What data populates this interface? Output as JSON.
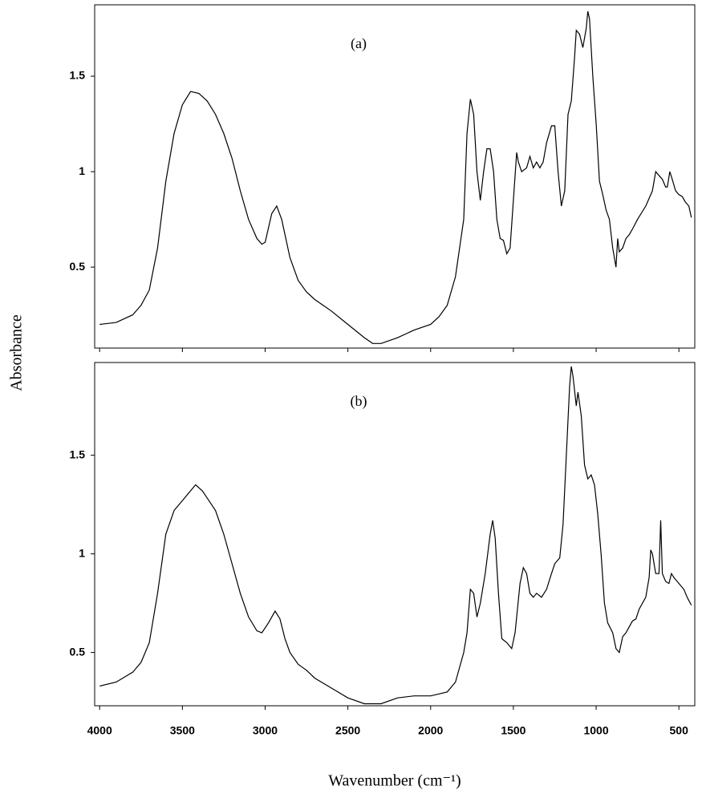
{
  "chart_data": [
    {
      "type": "line",
      "annotation": "(a)",
      "y_label": "Absorbance",
      "x": [
        4000,
        3900,
        3800,
        3750,
        3700,
        3650,
        3600,
        3550,
        3500,
        3450,
        3400,
        3350,
        3300,
        3250,
        3200,
        3150,
        3100,
        3050,
        3020,
        3000,
        2960,
        2930,
        2900,
        2850,
        2800,
        2750,
        2700,
        2600,
        2500,
        2400,
        2350,
        2300,
        2200,
        2100,
        2000,
        1950,
        1900,
        1850,
        1800,
        1780,
        1760,
        1740,
        1720,
        1700,
        1680,
        1660,
        1640,
        1620,
        1600,
        1580,
        1560,
        1540,
        1520,
        1500,
        1480,
        1470,
        1450,
        1420,
        1400,
        1380,
        1360,
        1340,
        1320,
        1300,
        1270,
        1250,
        1230,
        1210,
        1190,
        1170,
        1150,
        1130,
        1120,
        1100,
        1080,
        1060,
        1050,
        1040,
        1020,
        1000,
        980,
        960,
        940,
        920,
        900,
        880,
        870,
        860,
        840,
        820,
        800,
        780,
        750,
        700,
        660,
        640,
        620,
        600,
        580,
        570,
        555,
        540,
        520,
        500,
        480,
        460,
        440,
        425
      ],
      "values": [
        0.2,
        0.21,
        0.25,
        0.3,
        0.38,
        0.6,
        0.95,
        1.2,
        1.35,
        1.42,
        1.41,
        1.37,
        1.3,
        1.2,
        1.07,
        0.9,
        0.75,
        0.65,
        0.62,
        0.63,
        0.78,
        0.82,
        0.75,
        0.55,
        0.43,
        0.37,
        0.33,
        0.27,
        0.2,
        0.13,
        0.1,
        0.1,
        0.13,
        0.17,
        0.2,
        0.24,
        0.3,
        0.45,
        0.75,
        1.2,
        1.38,
        1.3,
        1.0,
        0.85,
        1.0,
        1.12,
        1.12,
        1.0,
        0.75,
        0.65,
        0.64,
        0.57,
        0.6,
        0.85,
        1.1,
        1.05,
        1.0,
        1.02,
        1.08,
        1.02,
        1.05,
        1.02,
        1.05,
        1.15,
        1.24,
        1.24,
        1.0,
        0.82,
        0.9,
        1.3,
        1.37,
        1.6,
        1.74,
        1.72,
        1.65,
        1.75,
        1.84,
        1.8,
        1.5,
        1.25,
        0.95,
        0.88,
        0.8,
        0.75,
        0.6,
        0.5,
        0.65,
        0.58,
        0.6,
        0.65,
        0.67,
        0.7,
        0.75,
        0.82,
        0.9,
        1.0,
        0.98,
        0.96,
        0.92,
        0.92,
        1.0,
        0.96,
        0.9,
        0.88,
        0.87,
        0.84,
        0.82,
        0.76
      ],
      "color": "#000000",
      "xlim": [
        4030,
        404
      ],
      "ylim": [
        0.076,
        1.874
      ],
      "yticks": [
        0.5,
        1.0,
        1.5
      ]
    },
    {
      "type": "line",
      "annotation": "(b)",
      "x_label": "Wavenumber (cm⁻¹)",
      "x": [
        4000,
        3900,
        3800,
        3750,
        3700,
        3650,
        3600,
        3550,
        3500,
        3450,
        3420,
        3380,
        3300,
        3250,
        3200,
        3150,
        3100,
        3050,
        3020,
        2980,
        2940,
        2910,
        2880,
        2850,
        2800,
        2750,
        2700,
        2600,
        2500,
        2400,
        2300,
        2200,
        2100,
        2000,
        1900,
        1850,
        1800,
        1780,
        1760,
        1740,
        1720,
        1700,
        1670,
        1640,
        1625,
        1610,
        1590,
        1570,
        1540,
        1510,
        1490,
        1460,
        1440,
        1420,
        1400,
        1380,
        1360,
        1330,
        1300,
        1270,
        1250,
        1220,
        1200,
        1180,
        1160,
        1150,
        1140,
        1120,
        1110,
        1090,
        1070,
        1050,
        1030,
        1010,
        990,
        970,
        950,
        930,
        900,
        880,
        860,
        840,
        820,
        800,
        780,
        760,
        740,
        700,
        680,
        670,
        660,
        640,
        620,
        610,
        600,
        580,
        560,
        545,
        530,
        500,
        470,
        450,
        425
      ],
      "values": [
        0.33,
        0.35,
        0.4,
        0.45,
        0.55,
        0.8,
        1.1,
        1.22,
        1.27,
        1.32,
        1.35,
        1.32,
        1.22,
        1.1,
        0.95,
        0.8,
        0.68,
        0.61,
        0.6,
        0.65,
        0.71,
        0.67,
        0.57,
        0.5,
        0.44,
        0.41,
        0.37,
        0.32,
        0.27,
        0.24,
        0.24,
        0.27,
        0.28,
        0.28,
        0.3,
        0.35,
        0.5,
        0.6,
        0.82,
        0.8,
        0.68,
        0.75,
        0.9,
        1.1,
        1.17,
        1.08,
        0.8,
        0.57,
        0.55,
        0.52,
        0.6,
        0.85,
        0.93,
        0.9,
        0.8,
        0.78,
        0.8,
        0.78,
        0.82,
        0.9,
        0.95,
        0.98,
        1.15,
        1.5,
        1.85,
        1.95,
        1.9,
        1.75,
        1.82,
        1.7,
        1.45,
        1.38,
        1.4,
        1.35,
        1.2,
        1.0,
        0.75,
        0.65,
        0.6,
        0.52,
        0.5,
        0.58,
        0.6,
        0.63,
        0.66,
        0.67,
        0.72,
        0.78,
        0.88,
        1.02,
        1.0,
        0.9,
        0.9,
        1.17,
        0.9,
        0.86,
        0.85,
        0.9,
        0.88,
        0.85,
        0.82,
        0.78,
        0.74
      ],
      "color": "#000000",
      "xlim": [
        4030,
        404
      ],
      "ylim": [
        0.23,
        1.97
      ],
      "yticks": [
        0.5,
        1.0,
        1.5
      ],
      "xticks": [
        4000,
        3500,
        3000,
        2500,
        2000,
        1500,
        1000,
        500
      ]
    }
  ]
}
